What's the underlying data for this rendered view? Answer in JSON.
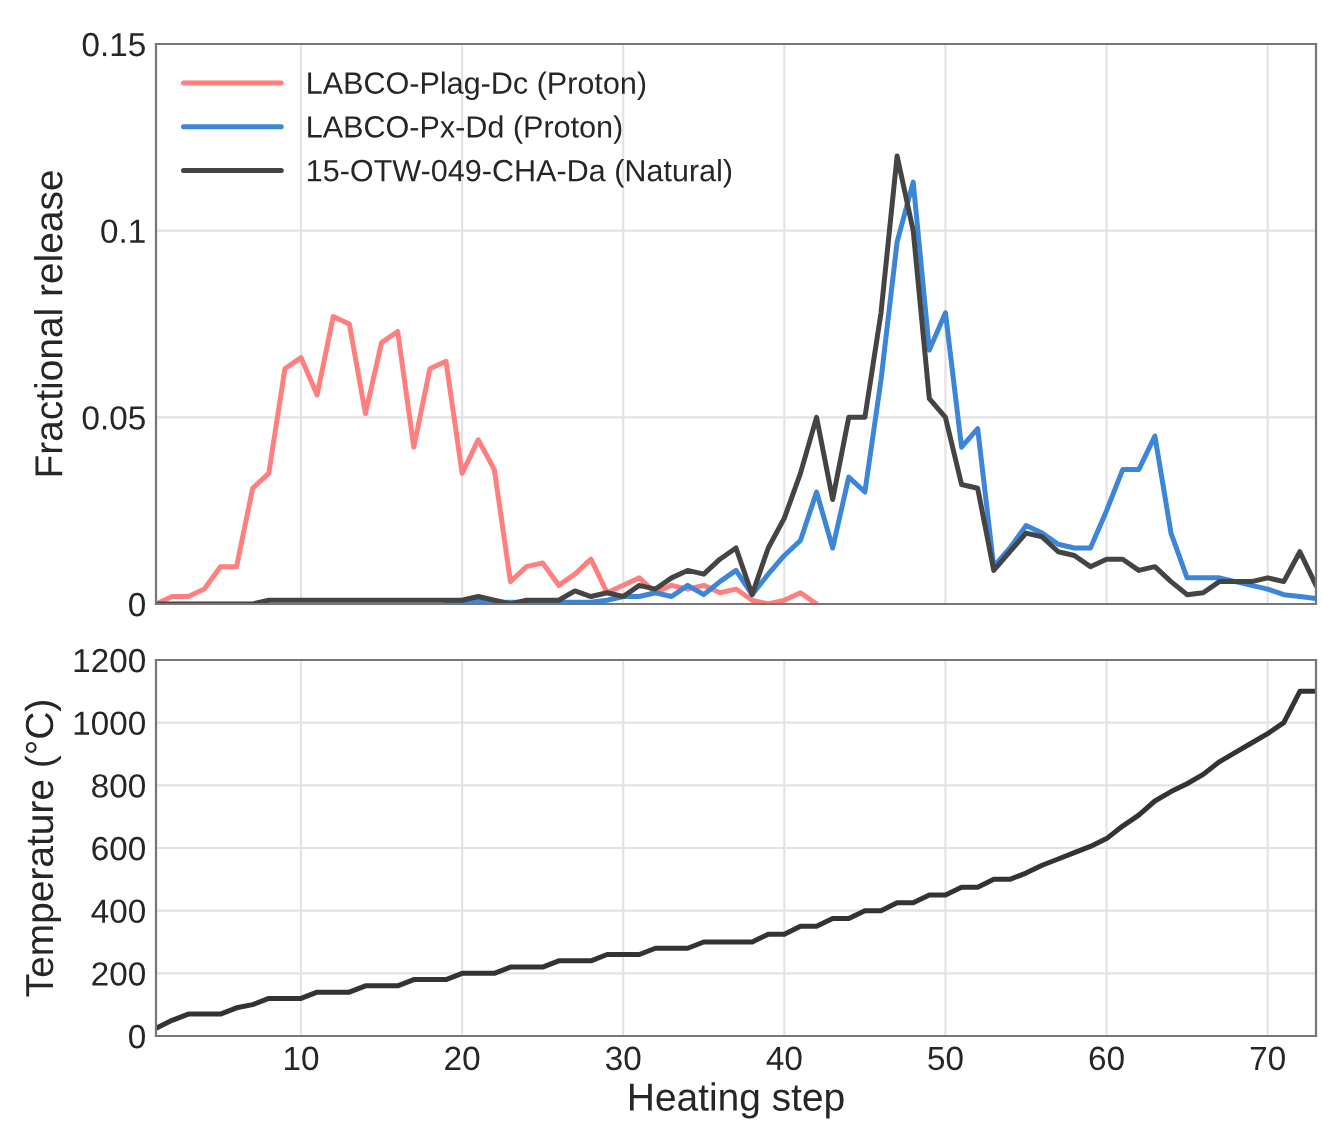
{
  "chart_data": [
    {
      "type": "line",
      "ylabel": "Fractional release",
      "x": [
        1,
        2,
        3,
        4,
        5,
        6,
        7,
        8,
        9,
        10,
        11,
        12,
        13,
        14,
        15,
        16,
        17,
        18,
        19,
        20,
        21,
        22,
        23,
        24,
        25,
        26,
        27,
        28,
        29,
        30,
        31,
        32,
        33,
        34,
        35,
        36,
        37,
        38,
        39,
        40,
        41,
        42,
        43,
        44,
        45,
        46,
        47,
        48,
        49,
        50,
        51,
        52,
        53,
        54,
        55,
        56,
        57,
        58,
        59,
        60,
        61,
        62,
        63,
        64,
        65,
        66,
        67,
        68,
        69,
        70,
        71,
        72,
        73
      ],
      "series": [
        {
          "name": "LABCO-Plag-Dc (Proton)",
          "color": "#ff7f7f",
          "values": [
            0,
            0.002,
            0.002,
            0.004,
            0.01,
            0.01,
            0.031,
            0.035,
            0.063,
            0.066,
            0.056,
            0.077,
            0.075,
            0.051,
            0.07,
            0.073,
            0.042,
            0.063,
            0.065,
            0.035,
            0.044,
            0.036,
            0.006,
            0.01,
            0.011,
            0.005,
            0.008,
            0.012,
            0.003,
            0.005,
            0.007,
            0.003,
            0.005,
            0.004,
            0.005,
            0.003,
            0.004,
            0.001,
            0,
            0.001,
            0.003,
            0,
            null,
            null,
            null,
            null,
            null,
            null,
            null,
            null,
            null,
            null,
            null,
            null,
            null,
            null,
            null,
            null,
            null,
            null,
            null,
            null,
            null,
            null,
            null,
            null,
            null,
            null,
            null,
            null,
            null,
            null,
            null
          ]
        },
        {
          "name": "LABCO-Px-Dd (Proton)",
          "color": "#3b86d6",
          "values": [
            null,
            null,
            null,
            null,
            null,
            null,
            null,
            null,
            null,
            null,
            null,
            null,
            null,
            null,
            null,
            null,
            null,
            null,
            0.0005,
            0.0005,
            0.001,
            0.0005,
            0.0005,
            0.0005,
            0.0005,
            0.0005,
            0.0005,
            0.0005,
            0.001,
            0.002,
            0.002,
            0.003,
            0.002,
            0.005,
            0.0025,
            0.006,
            0.009,
            0.0025,
            0.008,
            0.013,
            0.017,
            0.03,
            0.015,
            0.034,
            0.03,
            0.06,
            0.097,
            0.113,
            0.068,
            0.078,
            0.042,
            0.047,
            0.01,
            0.015,
            0.021,
            0.019,
            0.016,
            0.015,
            0.015,
            0.025,
            0.036,
            0.036,
            0.045,
            0.019,
            0.007,
            0.007,
            0.007,
            0.006,
            0.005,
            0.004,
            0.0025,
            0.002,
            0.0015
          ]
        },
        {
          "name": "15-OTW-049-CHA-Da (Natural)",
          "color": "#444444",
          "values": [
            0,
            0,
            0,
            0,
            0,
            0,
            0,
            0.001,
            0.001,
            0.001,
            0.001,
            0.001,
            0.001,
            0.001,
            0.001,
            0.001,
            0.001,
            0.001,
            0.001,
            0.001,
            0.002,
            0.001,
            0,
            0.001,
            0.001,
            0.001,
            0.0035,
            0.002,
            0.003,
            0.002,
            0.005,
            0.004,
            0.007,
            0.009,
            0.008,
            0.012,
            0.015,
            0.0025,
            0.015,
            0.023,
            0.035,
            0.05,
            0.028,
            0.05,
            0.05,
            0.078,
            0.12,
            0.1,
            0.055,
            0.05,
            0.032,
            0.031,
            0.009,
            0.014,
            0.019,
            0.018,
            0.014,
            0.013,
            0.01,
            0.012,
            0.012,
            0.009,
            0.01,
            0.006,
            0.0025,
            0.003,
            0.006,
            0.006,
            0.006,
            0.007,
            0.006,
            0.014,
            0.005
          ]
        }
      ],
      "xlim": [
        1,
        73
      ],
      "ylim": [
        0,
        0.15
      ],
      "yticks": [
        0,
        0.05,
        0.1,
        0.15
      ],
      "tick_labels": "y",
      "grid": true,
      "legend": "top left"
    },
    {
      "type": "line",
      "xlabel": "Heating step",
      "ylabel": "Temperature (°C)",
      "x": [
        1,
        2,
        3,
        4,
        5,
        6,
        7,
        8,
        9,
        10,
        11,
        12,
        13,
        14,
        15,
        16,
        17,
        18,
        19,
        20,
        21,
        22,
        23,
        24,
        25,
        26,
        27,
        28,
        29,
        30,
        31,
        32,
        33,
        34,
        35,
        36,
        37,
        38,
        39,
        40,
        41,
        42,
        43,
        44,
        45,
        46,
        47,
        48,
        49,
        50,
        51,
        52,
        53,
        54,
        55,
        56,
        57,
        58,
        59,
        60,
        61,
        62,
        63,
        64,
        65,
        66,
        67,
        68,
        69,
        70,
        71,
        72,
        73
      ],
      "series": [
        {
          "color": "#333333",
          "values": [
            25,
            50,
            70,
            70,
            70,
            90,
            100,
            120,
            120,
            120,
            140,
            140,
            140,
            160,
            160,
            160,
            180,
            180,
            180,
            200,
            200,
            200,
            220,
            220,
            220,
            240,
            240,
            240,
            260,
            260,
            260,
            280,
            280,
            280,
            300,
            300,
            300,
            300,
            325,
            325,
            350,
            350,
            375,
            375,
            400,
            400,
            425,
            425,
            450,
            450,
            475,
            475,
            500,
            500,
            520,
            545,
            565,
            585,
            605,
            630,
            670,
            705,
            750,
            780,
            805,
            835,
            875,
            905,
            935,
            965,
            1000,
            1100,
            1100
          ]
        }
      ],
      "xlim": [
        1,
        73
      ],
      "xticks": [
        10,
        20,
        30,
        40,
        50,
        60,
        70
      ],
      "ylim": [
        0,
        1200
      ],
      "yticks": [
        0,
        200,
        400,
        600,
        800,
        1000,
        1200
      ],
      "grid": true
    }
  ]
}
